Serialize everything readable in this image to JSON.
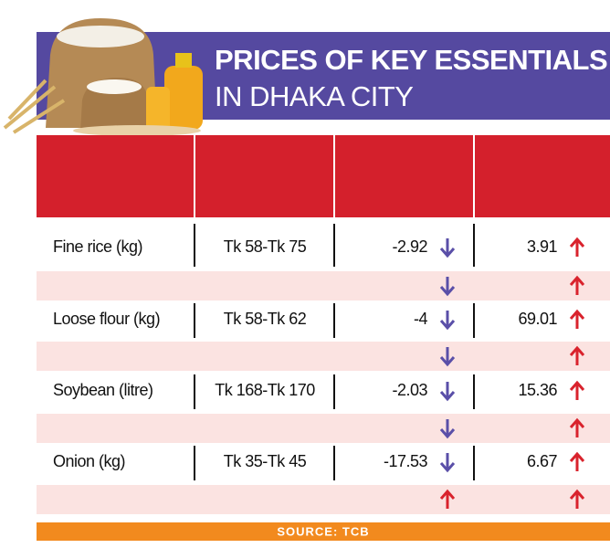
{
  "header": {
    "title_line1": "PRICES OF KEY ESSENTIALS",
    "title_line2": "IN DHAKA CITY"
  },
  "table": {
    "rows": [
      [
        "Fine rice (kg)",
        "Tk 58-Tk 75",
        "-2.92",
        "3.91"
      ],
      [
        "Loose flour (kg)",
        "Tk 58-Tk 62",
        "-4",
        "69.01"
      ],
      [
        "Soybean (litre)",
        "Tk 168-Tk 170",
        "-2.03",
        "15.36"
      ],
      [
        "Onion (kg)",
        "Tk 35-Tk 45",
        "-17.53",
        "6.67"
      ]
    ]
  },
  "footer": {
    "source": "SOURCE: TCB"
  }
}
